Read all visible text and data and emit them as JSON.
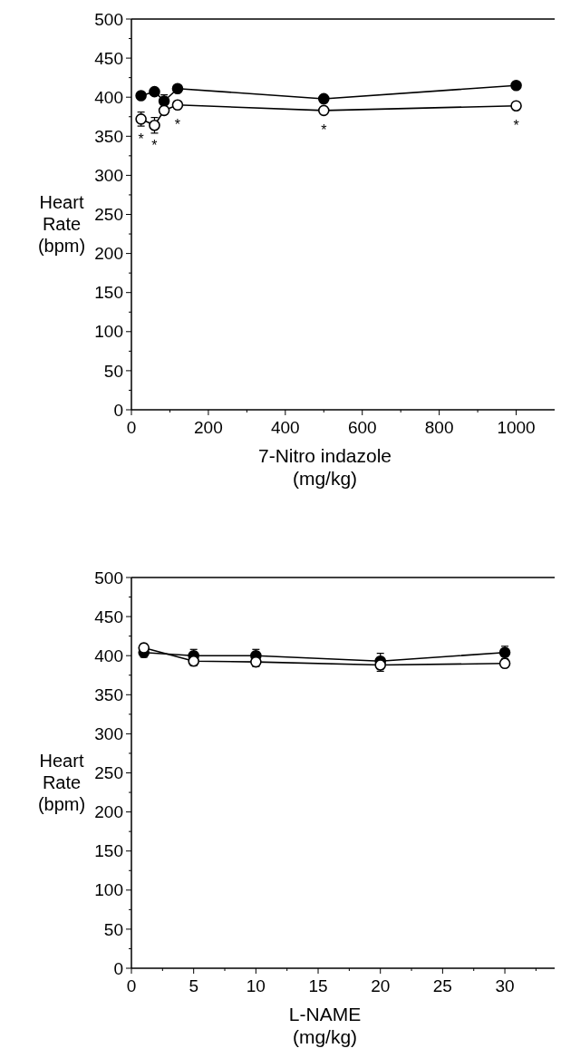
{
  "chart_data": [
    {
      "type": "line",
      "xlabel": "7-Nitro indazole\n(mg/kg)",
      "ylabel": "Heart\nRate\n(bpm)",
      "x": [
        25,
        60,
        85,
        120,
        500,
        1000
      ],
      "marker": "circle",
      "line_style": "solid",
      "grid": false,
      "series": [
        {
          "color": "#000000",
          "values": [
            402,
            407,
            395,
            411,
            398,
            415
          ],
          "errors": [
            null,
            null,
            8,
            null,
            null,
            null
          ]
        },
        {
          "color": "#ffffff",
          "values": [
            372,
            364,
            383,
            390,
            383,
            389
          ],
          "errors": [
            9,
            10,
            5,
            5,
            null,
            null
          ]
        }
      ],
      "xlim": [
        0,
        1100
      ],
      "xticks": [
        0,
        {
          "value": 100,
          "label": null
        },
        200,
        {
          "value": 300,
          "label": null
        },
        400,
        {
          "value": 500,
          "label": null
        },
        600,
        {
          "value": 700,
          "label": null
        },
        800,
        {
          "value": 900,
          "label": null
        },
        1000
      ],
      "ylim": [
        0,
        500
      ],
      "yticks": [
        0,
        {
          "value": 25,
          "label": null
        },
        50,
        {
          "value": 75,
          "label": null
        },
        100,
        {
          "value": 125,
          "label": null
        },
        150,
        {
          "value": 175,
          "label": null
        },
        200,
        {
          "value": 225,
          "label": null
        },
        250,
        {
          "value": 275,
          "label": null
        },
        300,
        {
          "value": 325,
          "label": null
        },
        350,
        {
          "value": 375,
          "label": null
        },
        400,
        {
          "value": 425,
          "label": null
        },
        450,
        {
          "value": 475,
          "label": null
        },
        500
      ],
      "annotations": [
        {
          "text": "*",
          "x": 25,
          "y": 372
        },
        {
          "text": "*",
          "x": 60,
          "y": 364
        },
        {
          "text": "*",
          "x": 120,
          "y": 390
        },
        {
          "text": "*",
          "x": 500,
          "y": 383
        },
        {
          "text": "*",
          "x": 1000,
          "y": 389
        }
      ]
    },
    {
      "type": "line",
      "xlabel": "L-NAME\n(mg/kg)",
      "ylabel": "Heart\nRate\n(bpm)",
      "x": [
        1,
        5,
        10,
        20,
        30
      ],
      "marker": "circle",
      "line_style": "solid",
      "grid": false,
      "series": [
        {
          "color": "#000000",
          "values": [
            404,
            400,
            400,
            393,
            404
          ],
          "errors": [
            6,
            8,
            8,
            10,
            8
          ]
        },
        {
          "color": "#ffffff",
          "values": [
            410,
            393,
            392,
            388,
            390
          ],
          "errors": [
            5,
            6,
            6,
            8,
            5
          ]
        }
      ],
      "xlim": [
        0,
        34
      ],
      "xticks": [
        0,
        {
          "value": 2.5,
          "label": null
        },
        5,
        {
          "value": 7.5,
          "label": null
        },
        10,
        {
          "value": 12.5,
          "label": null
        },
        15,
        {
          "value": 17.5,
          "label": null
        },
        20,
        {
          "value": 22.5,
          "label": null
        },
        25,
        {
          "value": 27.5,
          "label": null
        },
        30,
        {
          "value": 32.5,
          "label": null
        }
      ],
      "ylim": [
        0,
        500
      ],
      "yticks": [
        0,
        {
          "value": 25,
          "label": null
        },
        50,
        {
          "value": 75,
          "label": null
        },
        100,
        {
          "value": 125,
          "label": null
        },
        150,
        {
          "value": 175,
          "label": null
        },
        200,
        {
          "value": 225,
          "label": null
        },
        250,
        {
          "value": 275,
          "label": null
        },
        300,
        {
          "value": 325,
          "label": null
        },
        350,
        {
          "value": 375,
          "label": null
        },
        400,
        {
          "value": 425,
          "label": null
        },
        450,
        {
          "value": 475,
          "label": null
        },
        500
      ]
    }
  ]
}
